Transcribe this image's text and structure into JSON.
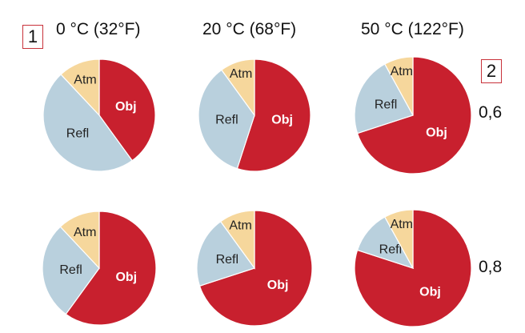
{
  "markers": {
    "left": "1",
    "right": "2"
  },
  "chart_data": {
    "type": "pie",
    "columns": [
      "0 °C (32°F)",
      "20 °C (68°F)",
      "50 °C (122°F)"
    ],
    "rows": [
      "0,6",
      "0,8"
    ],
    "slice_names": [
      "Obj",
      "Refl",
      "Atm"
    ],
    "colors": {
      "Obj": "#c8202e",
      "Refl": "#b9d0dd",
      "Atm": "#f6d79c"
    },
    "pies": [
      {
        "column": "0 °C (32°F)",
        "row": "0,6",
        "slices": {
          "Obj": 40,
          "Refl": 48,
          "Atm": 12
        }
      },
      {
        "column": "20 °C (68°F)",
        "row": "0,6",
        "slices": {
          "Obj": 55,
          "Refl": 35,
          "Atm": 10
        }
      },
      {
        "column": "50 °C (122°F)",
        "row": "0,6",
        "slices": {
          "Obj": 70,
          "Refl": 22,
          "Atm": 8
        }
      },
      {
        "column": "0 °C (32°F)",
        "row": "0,8",
        "slices": {
          "Obj": 60,
          "Refl": 28,
          "Atm": 12
        }
      },
      {
        "column": "20 °C (68°F)",
        "row": "0,8",
        "slices": {
          "Obj": 70,
          "Refl": 20,
          "Atm": 10
        }
      },
      {
        "column": "50 °C (122°F)",
        "row": "0,8",
        "slices": {
          "Obj": 80,
          "Refl": 12,
          "Atm": 8
        }
      }
    ]
  }
}
